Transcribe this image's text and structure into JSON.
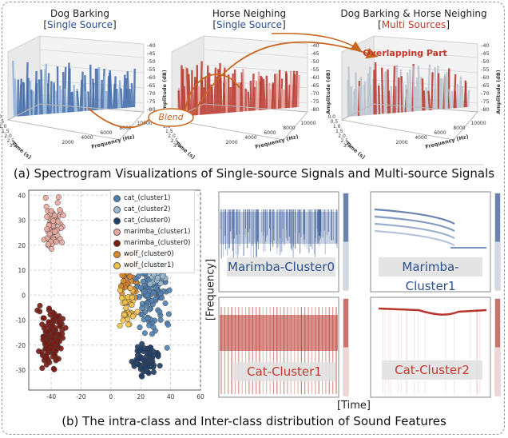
{
  "panel_a": {
    "titles": [
      {
        "line1": "Dog Barking",
        "bracket_open": "[",
        "tag": "Single Source",
        "bracket_close": "]"
      },
      {
        "line1": "Horse Neighing",
        "bracket_open": "[",
        "tag": "Single Source",
        "bracket_close": "]"
      },
      {
        "line1": "Dog Barking & Horse Neighing",
        "bracket_open": "[",
        "tag": "Multi Sources",
        "bracket_close": "]"
      }
    ],
    "blend_label": "Blend",
    "overlap_label": "Overlapping Part",
    "amplitude_axis_label": "Amplitude (dB)",
    "amplitude_ticks": [
      "-40",
      "-45",
      "-50",
      "-55",
      "-60",
      "-65",
      "-70",
      "-75",
      "-80"
    ],
    "time_axis_label": "Time (s)",
    "time_ticks": [
      "0.0",
      "0.5",
      "1.0",
      "1.5",
      "2.0",
      "2.5",
      "3.0"
    ],
    "freq_axis_label": "Frequency (Hz)",
    "freq_ticks": [
      "2000",
      "4000",
      "6000",
      "8000",
      "10000"
    ],
    "caption": "(a) Spectrogram Visualizations of Single-source Signals and Multi-source Signals"
  },
  "panel_b": {
    "caption": "(b) The intra-class and Inter-class distribution of Sound Features",
    "scatter": {
      "x_ticks": [
        "-40",
        "-20",
        "0",
        "20",
        "40",
        "60"
      ],
      "y_ticks": [
        "40",
        "30",
        "20",
        "10",
        "0",
        "-10",
        "-20",
        "-30"
      ],
      "legend": [
        {
          "label": "cat_(cluster1)",
          "color": "#4f7fb0"
        },
        {
          "label": "cat_(cluster2)",
          "color": "#9bbbd4"
        },
        {
          "label": "cat_(cluster0)",
          "color": "#1f3d66"
        },
        {
          "label": "marimba_(cluster1)",
          "color": "#e8a8a0"
        },
        {
          "label": "marimba_(cluster0)",
          "color": "#7a1a12"
        },
        {
          "label": "wolf_(cluster0)",
          "color": "#d9862a"
        },
        {
          "label": "wolf_(cluster1)",
          "color": "#f3c04a"
        }
      ]
    },
    "spectrograms": [
      {
        "label": "Marimba-Cluster0",
        "color": "#2a4f8f"
      },
      {
        "label": "Marimba-Cluster1",
        "color": "#2a4f8f"
      },
      {
        "label": "Cat-Cluster1",
        "color": "#c0392b"
      },
      {
        "label": "Cat-Cluster2",
        "color": "#c0392b"
      }
    ],
    "y_axis_label": "[Frequency]",
    "x_axis_label": "[Time]"
  },
  "colors": {
    "blue": "#2a4f8f",
    "red": "#c0392b",
    "orange": "#c8661f"
  }
}
